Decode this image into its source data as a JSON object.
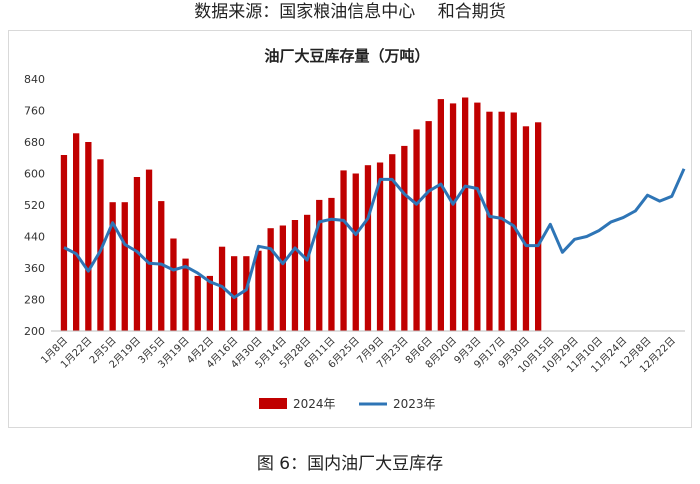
{
  "header": {
    "source_text": "数据来源：国家粮油信息中心　 和合期货"
  },
  "footer": {
    "caption": "图 6：国内油厂大豆库存"
  },
  "chart_data": {
    "type": "bar+line",
    "title": "油厂大豆库存量（万吨）",
    "xlabel": "",
    "ylabel": "",
    "ylim": [
      200,
      840
    ],
    "yticks": [
      200,
      280,
      360,
      440,
      520,
      600,
      680,
      760,
      840
    ],
    "grid": false,
    "legend": "bottom",
    "x_tick_labels": [
      "1月8日",
      "1月22日",
      "2月5日",
      "2月19日",
      "3月5日",
      "3月19日",
      "4月2日",
      "4月16日",
      "4月30日",
      "5月14日",
      "5月28日",
      "6月11日",
      "6月25日",
      "7月9日",
      "7月23日",
      "8月6日",
      "8月20日",
      "9月3日",
      "9月17日",
      "9月30日",
      "10月15日",
      "10月29日",
      "11月10日",
      "11月24日",
      "12月8日",
      "12月22日"
    ],
    "series": [
      {
        "name": "2024年",
        "type": "bar",
        "color": "#c00000",
        "values": [
          647,
          702,
          680,
          636,
          527,
          527,
          591,
          610,
          530,
          435,
          384,
          340,
          340,
          414,
          390,
          390,
          404,
          461,
          468,
          482,
          495,
          533,
          538,
          608,
          600,
          621,
          628,
          649,
          670,
          712,
          733,
          789,
          778,
          793,
          780,
          757,
          757,
          755,
          720,
          730
        ]
      },
      {
        "name": "2023年",
        "type": "line",
        "color": "#2e75b6",
        "values": [
          412,
          396,
          352,
          404,
          475,
          420,
          402,
          372,
          370,
          355,
          364,
          347,
          325,
          313,
          285,
          305,
          415,
          409,
          371,
          411,
          380,
          477,
          484,
          481,
          445,
          486,
          585,
          585,
          548,
          522,
          555,
          573,
          522,
          568,
          562,
          491,
          486,
          467,
          417,
          417,
          471,
          400,
          433,
          440,
          455,
          477,
          488,
          505,
          545,
          530,
          542,
          612
        ]
      }
    ]
  }
}
